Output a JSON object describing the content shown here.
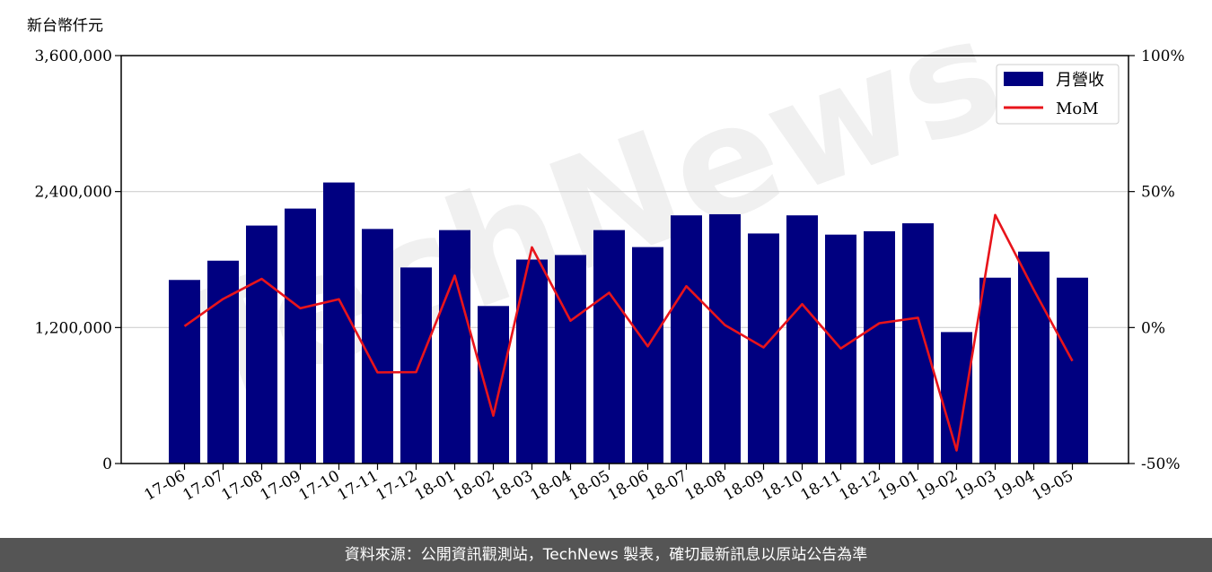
{
  "footer": {
    "source_note": "資料來源：公開資訊觀測站，TechNews 製表，確切最新訊息以原站公告為準"
  },
  "watermark": {
    "text": "TechNews"
  },
  "chart_data": {
    "type": "bar+line",
    "unit_label": "新台幣仟元",
    "categories": [
      "17-06",
      "17-07",
      "17-08",
      "17-09",
      "17-10",
      "17-11",
      "17-12",
      "18-01",
      "18-02",
      "18-03",
      "18-04",
      "18-05",
      "18-06",
      "18-07",
      "18-08",
      "18-09",
      "18-10",
      "18-11",
      "18-12",
      "19-01",
      "19-02",
      "19-03",
      "19-04",
      "19-05"
    ],
    "series": [
      {
        "name": "月營收",
        "type": "bar",
        "axis": "left",
        "color": "#000080",
        "values": [
          1620000,
          1790000,
          2100000,
          2250000,
          2480000,
          2070000,
          1730000,
          2060000,
          1390000,
          1800000,
          1840000,
          2060000,
          1910000,
          2190000,
          2200000,
          2030000,
          2190000,
          2020000,
          2050000,
          2120000,
          1160000,
          1640000,
          1870000,
          1640000
        ]
      },
      {
        "name": "MoM",
        "type": "line",
        "axis": "right",
        "color": "#e8141b",
        "values": [
          0.5,
          10.5,
          17.9,
          7.1,
          10.4,
          -16.5,
          -16.4,
          19.1,
          -32.4,
          29.5,
          2.5,
          12.8,
          -6.9,
          15.2,
          0.9,
          -7.3,
          8.6,
          -7.7,
          1.6,
          3.6,
          -45.2,
          41.4,
          13.9,
          -12.3
        ]
      }
    ],
    "y_left": {
      "min": 0,
      "max": 3600000,
      "ticks": [
        0,
        1200000,
        2400000,
        3600000
      ],
      "tick_labels": [
        "0",
        "1,200,000",
        "2,400,000",
        "3,600,000"
      ]
    },
    "y_right": {
      "min": -50,
      "max": 100,
      "ticks": [
        -50,
        0,
        50,
        100
      ],
      "tick_labels": [
        "-50%",
        "0%",
        "50%",
        "100%"
      ]
    },
    "grid": "horizontal",
    "legend": {
      "position": "top-right",
      "entries": [
        "月營收",
        "MoM"
      ]
    }
  }
}
